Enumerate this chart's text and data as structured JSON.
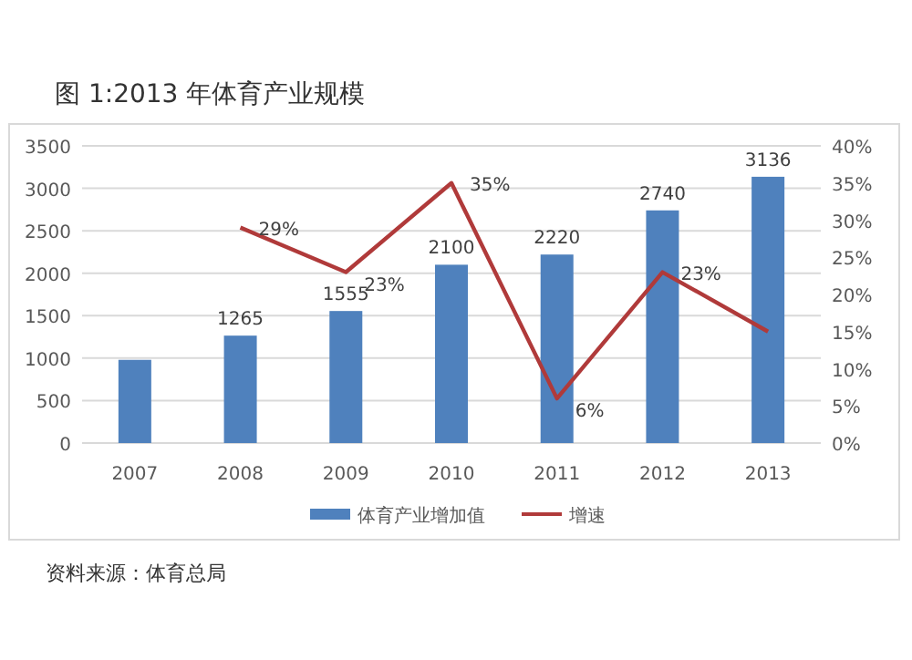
{
  "chart_data": {
    "type": "bar",
    "title": "图 1:2013 年体育产业规模",
    "categories": [
      "2007",
      "2008",
      "2009",
      "2010",
      "2011",
      "2012",
      "2013"
    ],
    "series": [
      {
        "name": "体育产业增加值",
        "color": "#4f81bd",
        "values": [
          980,
          1265,
          1555,
          2100,
          2220,
          2740,
          3136
        ],
        "value_labels": [
          null,
          "1265",
          "1555",
          "2100",
          "2220",
          "2740",
          "3136"
        ]
      },
      {
        "name": "增速",
        "type": "line",
        "axis": "y2",
        "color": "#b03a3a",
        "values": [
          null,
          29,
          23,
          35,
          6,
          23,
          15
        ],
        "value_labels": [
          null,
          "29%",
          "23%",
          "35%",
          "6%",
          "23%",
          null
        ]
      }
    ],
    "ylim": [
      0,
      3500
    ],
    "yticks": [
      0,
      500,
      1000,
      1500,
      2000,
      2500,
      3000,
      3500
    ],
    "y2lim": [
      0,
      40
    ],
    "y2ticks": [
      {
        "value": 0,
        "label": "0%"
      },
      {
        "value": 5,
        "label": "5%"
      },
      {
        "value": 10,
        "label": "10%"
      },
      {
        "value": 15,
        "label": "15%"
      },
      {
        "value": 20,
        "label": "20%"
      },
      {
        "value": 25,
        "label": "25%"
      },
      {
        "value": 30,
        "label": "30%"
      },
      {
        "value": 35,
        "label": "35%"
      },
      {
        "value": 40,
        "label": "40%"
      }
    ],
    "grid": "y",
    "legend": "bottom",
    "marker": "none",
    "annotations": [
      "资料来源：体育总局"
    ]
  }
}
